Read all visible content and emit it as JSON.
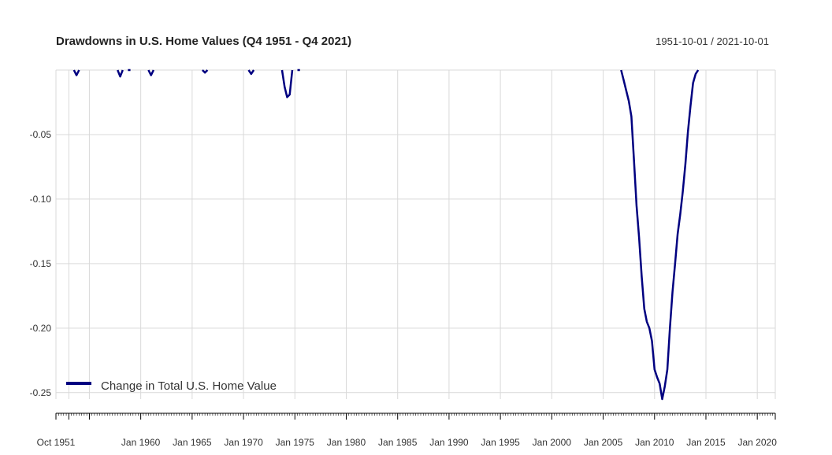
{
  "chart_data": {
    "type": "line",
    "title": "Drawdowns in U.S. Home Values (Q4 1951 - Q4 2021)",
    "date_range_label": "1951-10-01 / 2021-10-01",
    "xlabel": "",
    "ylabel": "",
    "x_range": [
      "1951-10-01",
      "2021-10-01"
    ],
    "ylim": [
      -0.255,
      0.0
    ],
    "y_ticks": [
      -0.05,
      -0.1,
      -0.15,
      -0.2,
      -0.25
    ],
    "y_tick_labels": [
      "-0.05",
      "-0.10",
      "-0.15",
      "-0.20",
      "-0.25"
    ],
    "x_gridlines": [
      "1953-01-01",
      "1955-01-01",
      "1960-01-01",
      "1965-01-01",
      "1970-01-01",
      "1975-01-01",
      "1980-01-01",
      "1985-01-01",
      "1990-01-01",
      "1995-01-01",
      "2000-01-01",
      "2005-01-01",
      "2010-01-01",
      "2015-01-01",
      "2020-01-01"
    ],
    "x_tick_labels": [
      {
        "date": "1951-10-01",
        "label": "Oct 1951"
      },
      {
        "date": "1960-01-01",
        "label": "Jan 1960"
      },
      {
        "date": "1965-01-01",
        "label": "Jan 1965"
      },
      {
        "date": "1970-01-01",
        "label": "Jan 1970"
      },
      {
        "date": "1975-01-01",
        "label": "Jan 1975"
      },
      {
        "date": "1980-01-01",
        "label": "Jan 1980"
      },
      {
        "date": "1985-01-01",
        "label": "Jan 1985"
      },
      {
        "date": "1990-01-01",
        "label": "Jan 1990"
      },
      {
        "date": "1995-01-01",
        "label": "Jan 1995"
      },
      {
        "date": "2000-01-01",
        "label": "Jan 2000"
      },
      {
        "date": "2005-01-01",
        "label": "Jan 2005"
      },
      {
        "date": "2010-01-01",
        "label": "Jan 2010"
      },
      {
        "date": "2015-01-01",
        "label": "Jan 2015"
      },
      {
        "date": "2020-01-01",
        "label": "Jan 2020"
      }
    ],
    "grid": true,
    "legend_position": "bottom-left",
    "series": [
      {
        "name": "Change in Total U.S. Home Value",
        "color": "#000080",
        "segments": [
          [
            [
              "1953-07-01",
              0.0
            ],
            [
              "1953-10-01",
              -0.004
            ],
            [
              "1954-01-01",
              0.0
            ]
          ],
          [
            [
              "1957-10-01",
              0.0
            ],
            [
              "1958-01-01",
              -0.005
            ],
            [
              "1958-04-01",
              0.0
            ]
          ],
          [
            [
              "1958-10-01",
              0.0
            ],
            [
              "1959-01-01",
              0.0
            ]
          ],
          [
            [
              "1960-10-01",
              0.0
            ],
            [
              "1961-01-01",
              -0.004
            ],
            [
              "1961-04-01",
              0.0
            ]
          ],
          [
            [
              "1966-01-01",
              0.0
            ],
            [
              "1966-04-01",
              -0.002
            ],
            [
              "1966-07-01",
              0.0
            ]
          ],
          [
            [
              "1970-07-01",
              0.0
            ],
            [
              "1970-10-01",
              -0.003
            ],
            [
              "1971-01-01",
              0.0
            ]
          ],
          [
            [
              "1973-10-01",
              0.0
            ],
            [
              "1974-01-01",
              -0.013
            ],
            [
              "1974-04-01",
              -0.021
            ],
            [
              "1974-07-01",
              -0.019
            ],
            [
              "1974-10-01",
              0.0
            ]
          ],
          [
            [
              "1975-04-01",
              0.0
            ],
            [
              "1975-07-01",
              0.0
            ]
          ],
          [
            [
              "2006-10-01",
              0.0
            ],
            [
              "2007-01-01",
              -0.008
            ],
            [
              "2007-04-01",
              -0.016
            ],
            [
              "2007-07-01",
              -0.024
            ],
            [
              "2007-10-01",
              -0.036
            ],
            [
              "2008-01-01",
              -0.07
            ],
            [
              "2008-04-01",
              -0.105
            ],
            [
              "2008-07-01",
              -0.13
            ],
            [
              "2008-10-01",
              -0.16
            ],
            [
              "2009-01-01",
              -0.185
            ],
            [
              "2009-04-01",
              -0.195
            ],
            [
              "2009-07-01",
              -0.2
            ],
            [
              "2009-10-01",
              -0.21
            ],
            [
              "2010-01-01",
              -0.232
            ],
            [
              "2010-04-01",
              -0.238
            ],
            [
              "2010-07-01",
              -0.243
            ],
            [
              "2010-10-01",
              -0.255
            ],
            [
              "2011-01-01",
              -0.245
            ],
            [
              "2011-04-01",
              -0.232
            ],
            [
              "2011-07-01",
              -0.2
            ],
            [
              "2011-10-01",
              -0.172
            ],
            [
              "2012-01-01",
              -0.15
            ],
            [
              "2012-04-01",
              -0.127
            ],
            [
              "2012-07-01",
              -0.112
            ],
            [
              "2012-10-01",
              -0.094
            ],
            [
              "2013-01-01",
              -0.073
            ],
            [
              "2013-04-01",
              -0.048
            ],
            [
              "2013-07-01",
              -0.028
            ],
            [
              "2013-10-01",
              -0.01
            ],
            [
              "2014-01-01",
              -0.003
            ],
            [
              "2014-04-01",
              0.0
            ]
          ]
        ]
      }
    ]
  }
}
